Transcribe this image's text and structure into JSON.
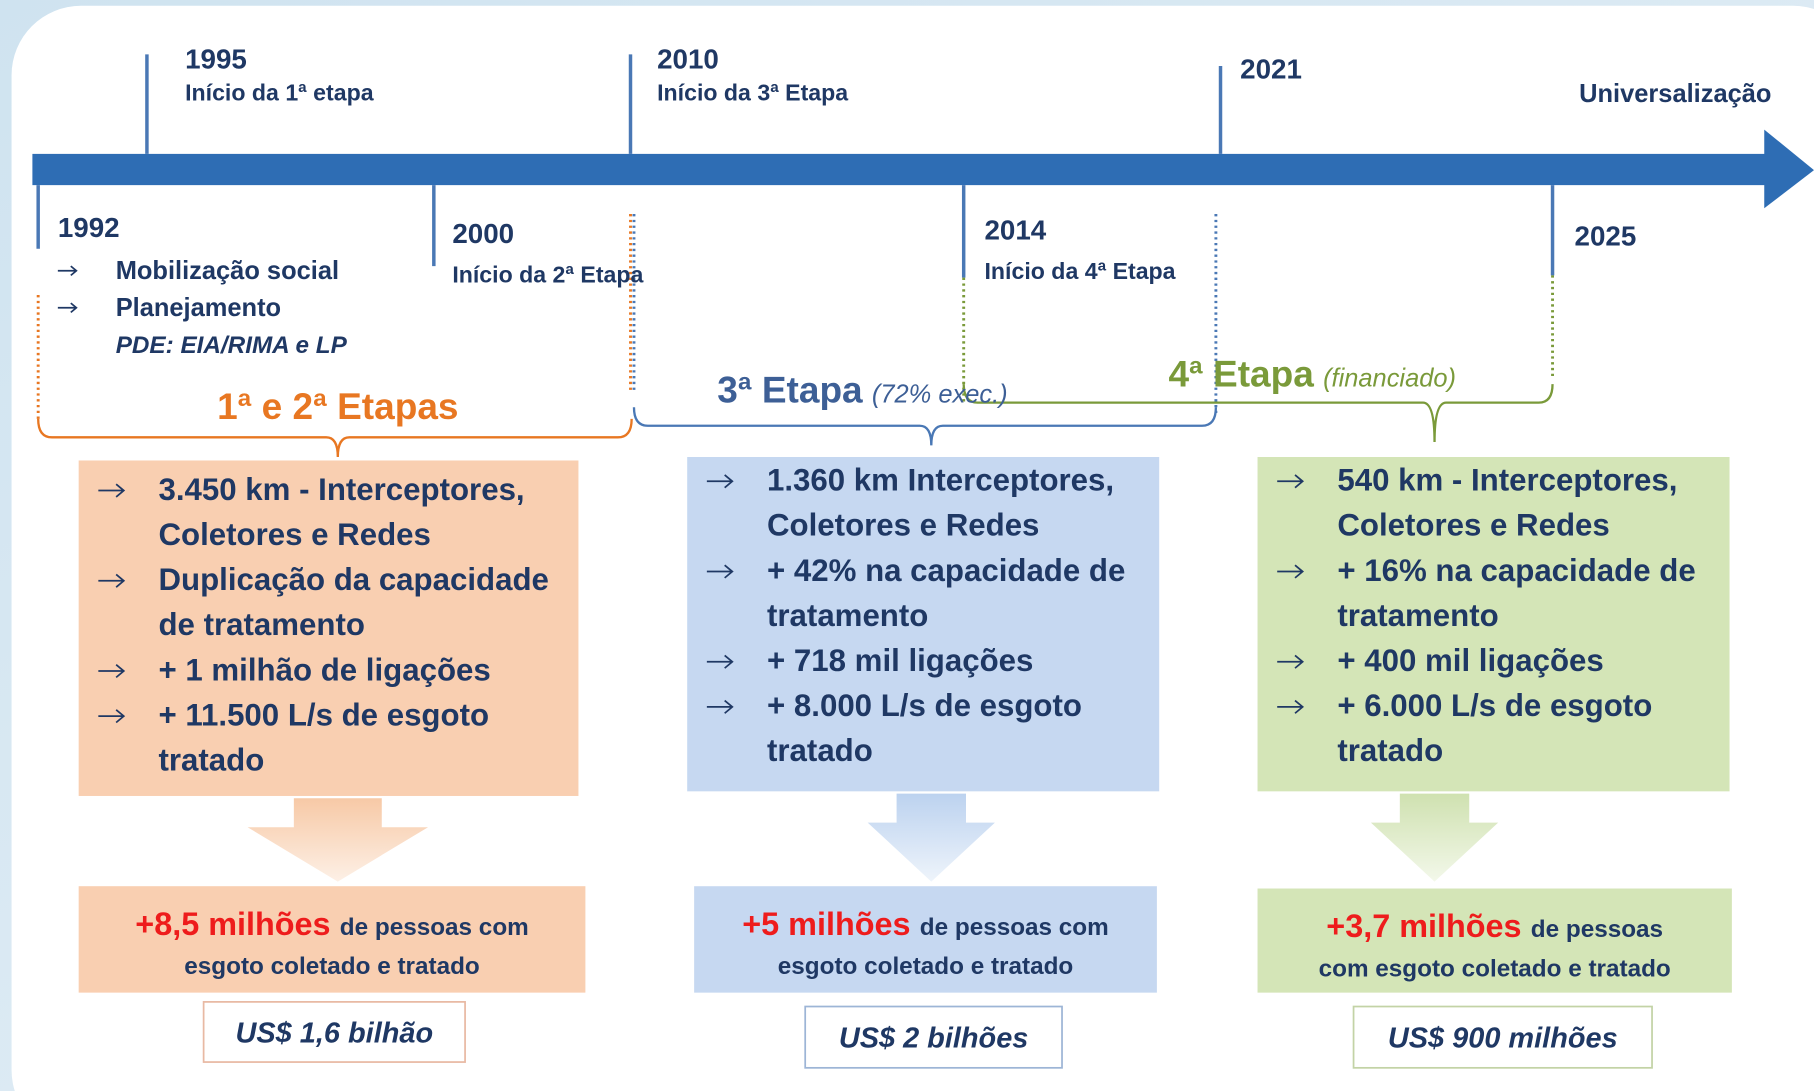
{
  "timeline": {
    "top": [
      {
        "year": "1995",
        "label": "Início da 1ª etapa"
      },
      {
        "year": "2010",
        "label": "Início da 3ª Etapa"
      },
      {
        "year": "2021"
      }
    ],
    "end": "Universalização",
    "bottom": [
      {
        "year": "1992",
        "items": [
          "Mobilização social",
          "Planejamento"
        ],
        "note": "PDE: EIA/RIMA e LP"
      },
      {
        "year": "2000",
        "label": "Início da 2ª Etapa"
      },
      {
        "year": "2014",
        "label": "Início da 4ª Etapa"
      },
      {
        "year": "2025"
      }
    ]
  },
  "phases": [
    {
      "title": "1ª e 2ª Etapas",
      "bullets": [
        [
          "3.450 km - Interceptores,",
          "Coletores e Redes"
        ],
        [
          "Duplicação da capacidade",
          "de tratamento"
        ],
        [
          "+ 1 milhão de ligações"
        ],
        [
          "+ 11.500 L/s de esgoto",
          "tratado"
        ]
      ],
      "result": {
        "highlight": "+8,5 milhões",
        "lines": [
          "de pessoas com",
          "esgoto coletado e tratado"
        ]
      },
      "cost": "US$ 1,6 bilhão"
    },
    {
      "title": "3ª Etapa",
      "subtitle": "(72% exec.)",
      "bullets": [
        [
          "1.360 km Interceptores,",
          "Coletores e Redes"
        ],
        [
          "+ 42% na capacidade de",
          "tratamento"
        ],
        [
          "+ 718 mil ligações"
        ],
        [
          "+ 8.000 L/s de esgoto",
          "tratado"
        ]
      ],
      "result": {
        "highlight": "+5 milhões",
        "lines": [
          "de pessoas com",
          "esgoto coletado e tratado"
        ]
      },
      "cost": "US$ 2 bilhões"
    },
    {
      "title": "4ª Etapa",
      "subtitle": "(financiado)",
      "bullets": [
        [
          "540 km - Interceptores,",
          "Coletores e Redes"
        ],
        [
          "+ 16% na capacidade de",
          "tratamento"
        ],
        [
          "+ 400 mil ligações"
        ],
        [
          "+ 6.000 L/s de esgoto",
          "tratado"
        ]
      ],
      "result": {
        "highlight": "+3,7 milhões",
        "lines": [
          "de pessoas",
          "com esgoto coletado e tratado"
        ]
      },
      "cost": "US$ 900 milhões"
    }
  ]
}
